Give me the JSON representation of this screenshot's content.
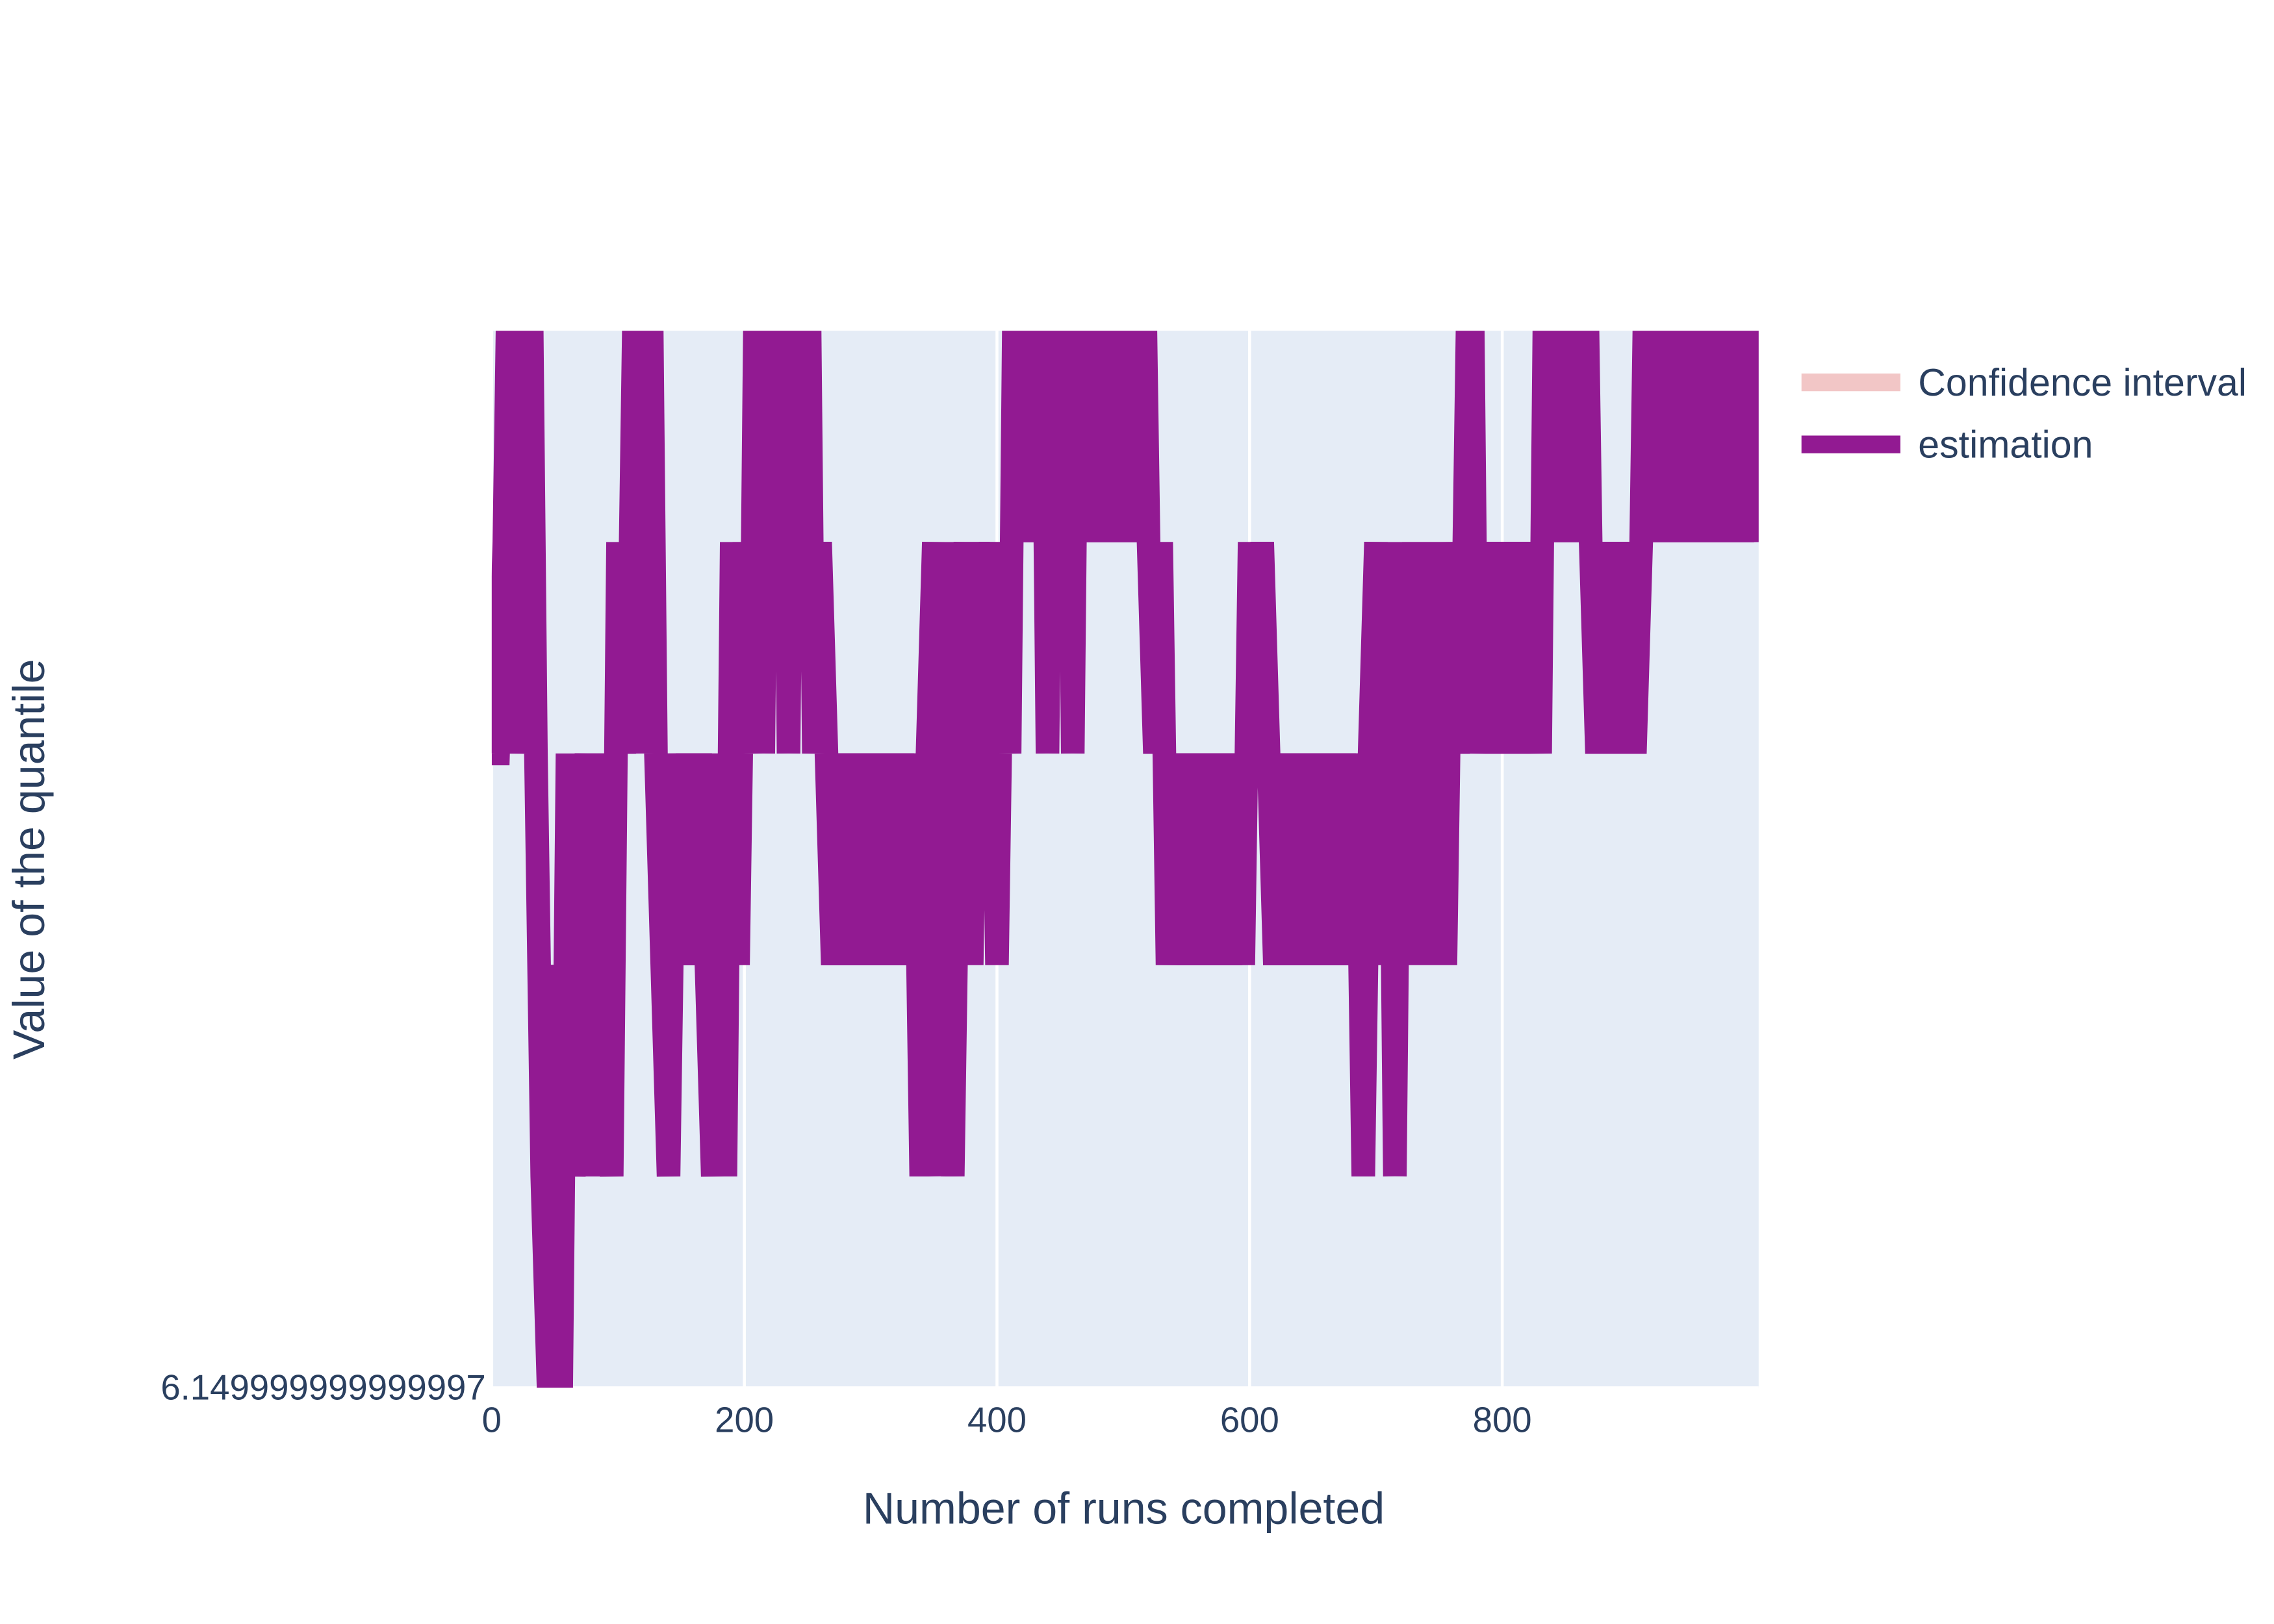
{
  "chart_data": {
    "type": "line",
    "x_label": "Number of runs completed",
    "y_label": "Value of the quantile",
    "xlim": [
      0,
      1003
    ],
    "xticks": [
      0,
      200,
      400,
      600,
      800
    ],
    "ylim": [
      6.149999999999997,
      6.2
    ],
    "yticks": [
      6.149999999999997
    ],
    "grid": true,
    "legend": "top-right",
    "x": [
      0,
      5,
      10,
      15,
      20,
      25,
      30,
      35,
      40,
      45,
      50,
      55,
      60,
      65,
      70,
      75,
      80,
      85,
      90,
      95,
      100,
      105,
      110,
      115,
      120,
      125,
      130,
      135,
      140,
      145,
      150,
      155,
      160,
      165,
      170,
      175,
      180,
      185,
      190,
      195,
      200,
      205,
      210,
      215,
      220,
      225,
      230,
      235,
      240,
      245,
      250,
      255,
      260,
      265,
      270,
      275,
      280,
      285,
      290,
      295,
      300,
      305,
      310,
      315,
      320,
      325,
      330,
      335,
      340,
      345,
      350,
      355,
      360,
      365,
      370,
      375,
      380,
      385,
      390,
      395,
      400,
      405,
      410,
      415,
      420,
      425,
      430,
      435,
      440,
      445,
      450,
      455,
      460,
      465,
      470,
      475,
      480,
      485,
      490,
      495,
      500,
      505,
      510,
      515,
      520,
      525,
      530,
      535,
      540,
      545,
      550,
      555,
      560,
      565,
      570,
      575,
      580,
      585,
      590,
      595,
      600,
      605,
      610,
      615,
      620,
      625,
      630,
      635,
      640,
      645,
      650,
      655,
      660,
      665,
      670,
      675,
      680,
      685,
      690,
      695,
      700,
      705,
      710,
      715,
      720,
      725,
      730,
      735,
      740,
      745,
      750,
      755,
      760,
      765,
      770,
      775,
      780,
      785,
      790,
      795,
      800,
      805,
      810,
      815,
      820,
      825,
      830,
      835,
      840,
      845,
      850,
      855,
      860,
      865,
      870,
      875,
      880,
      885,
      890,
      895,
      900,
      905,
      910,
      915,
      920,
      925,
      930,
      935,
      940,
      945,
      950,
      955,
      960,
      965,
      970,
      975,
      980,
      985,
      990,
      995,
      1000
    ],
    "series": [
      {
        "name": "Confidence interval",
        "color": "#f2c6c6",
        "values": [
          null,
          null,
          null,
          null,
          null,
          null,
          null,
          null,
          null,
          null,
          null,
          null,
          null,
          null,
          null,
          null,
          null,
          null,
          null,
          null,
          null,
          null,
          null,
          null,
          null,
          null,
          null,
          null,
          null,
          null,
          null,
          null,
          null,
          null,
          null,
          null,
          null,
          null,
          null,
          null,
          null,
          null,
          null,
          null,
          null,
          null,
          null,
          null,
          null,
          null,
          null,
          null,
          null,
          null,
          null,
          null,
          null,
          null,
          null,
          null,
          null,
          null,
          null,
          null,
          null,
          null,
          null,
          null,
          null,
          null,
          null,
          null,
          null,
          null,
          null,
          null,
          null,
          null,
          null,
          null,
          null,
          null,
          null,
          null,
          null,
          null,
          null,
          null,
          null,
          null,
          null,
          null,
          null,
          null,
          null,
          null,
          null,
          null,
          null,
          null,
          null,
          null,
          null,
          null,
          null,
          null,
          null,
          null,
          null,
          null,
          null,
          null,
          null,
          null,
          null,
          null,
          null,
          null,
          null,
          null,
          null,
          null,
          null,
          null,
          null,
          null,
          null,
          null,
          null,
          null,
          null,
          null,
          null,
          null,
          null,
          null,
          null,
          null,
          null,
          null,
          null,
          null,
          null,
          null,
          null,
          null,
          null,
          null,
          null,
          null,
          null,
          null,
          null,
          null,
          null,
          null,
          null,
          null,
          null,
          null,
          null,
          null,
          null,
          null,
          null,
          null,
          null,
          null,
          null,
          null,
          null,
          null,
          null,
          null,
          null,
          null,
          null,
          null,
          null,
          null,
          null,
          null,
          null,
          null,
          null,
          null,
          null,
          null,
          null,
          null,
          null,
          null,
          null,
          null,
          null,
          null,
          null,
          null,
          null,
          null,
          null
        ]
      },
      {
        "name": "estimation",
        "color": "#921a92",
        "values": [
          6.18,
          6.18,
          6.19,
          6.21,
          6.18,
          6.19,
          6.21,
          6.18,
          6.16,
          6.15,
          6.17,
          6.15,
          6.18,
          6.16,
          6.17,
          6.18,
          6.16,
          6.18,
          6.17,
          6.16,
          6.19,
          6.18,
          6.19,
          6.21,
          6.18,
          6.21,
          6.18,
          6.17,
          6.16,
          6.18,
          6.17,
          6.18,
          6.17,
          6.18,
          6.17,
          6.16,
          6.18,
          6.16,
          6.19,
          6.17,
          6.19,
          6.18,
          6.21,
          6.18,
          6.21,
          6.19,
          6.21,
          6.18,
          6.21,
          6.19,
          6.21,
          6.18,
          6.19,
          6.18,
          6.17,
          6.18,
          6.17,
          6.18,
          6.17,
          6.18,
          6.17,
          6.18,
          6.17,
          6.18,
          6.17,
          6.18,
          6.17,
          6.18,
          6.16,
          6.18,
          6.19,
          6.16,
          6.19,
          6.16,
          6.18,
          6.19,
          6.17,
          6.19,
          6.18,
          6.19,
          6.17,
          6.19,
          6.18,
          6.21,
          6.19,
          6.21,
          6.19,
          6.21,
          6.18,
          6.21,
          6.19,
          6.21,
          6.18,
          6.21,
          6.19,
          6.21,
          6.19,
          6.21,
          6.19,
          6.21,
          6.19,
          6.21,
          6.19,
          6.21,
          6.19,
          6.18,
          6.19,
          6.17,
          6.18,
          6.17,
          6.18,
          6.17,
          6.18,
          6.17,
          6.18,
          6.17,
          6.18,
          6.17,
          6.18,
          6.17,
          6.19,
          6.18,
          6.19,
          6.18,
          6.17,
          6.18,
          6.17,
          6.18,
          6.17,
          6.18,
          6.17,
          6.18,
          6.17,
          6.18,
          6.17,
          6.18,
          6.17,
          6.18,
          6.16,
          6.18,
          6.19,
          6.17,
          6.19,
          6.16,
          6.19,
          6.17,
          6.19,
          6.17,
          6.19,
          6.17,
          6.19,
          6.17,
          6.19,
          6.18,
          6.19,
          6.21,
          6.18,
          6.19,
          6.18,
          6.19,
          6.18,
          6.19,
          6.18,
          6.19,
          6.18,
          6.19,
          6.18,
          6.21,
          6.19,
          6.21,
          6.19,
          6.21,
          6.19,
          6.21,
          6.19,
          6.18,
          6.19,
          6.18,
          6.19,
          6.18,
          6.19,
          6.18,
          6.19,
          6.21,
          6.19,
          6.21,
          6.19,
          6.21,
          6.19,
          6.21,
          6.19,
          6.21,
          6.19,
          6.21,
          6.19,
          6.21,
          6.19,
          6.21,
          6.19,
          6.21,
          6.19
        ]
      }
    ]
  }
}
